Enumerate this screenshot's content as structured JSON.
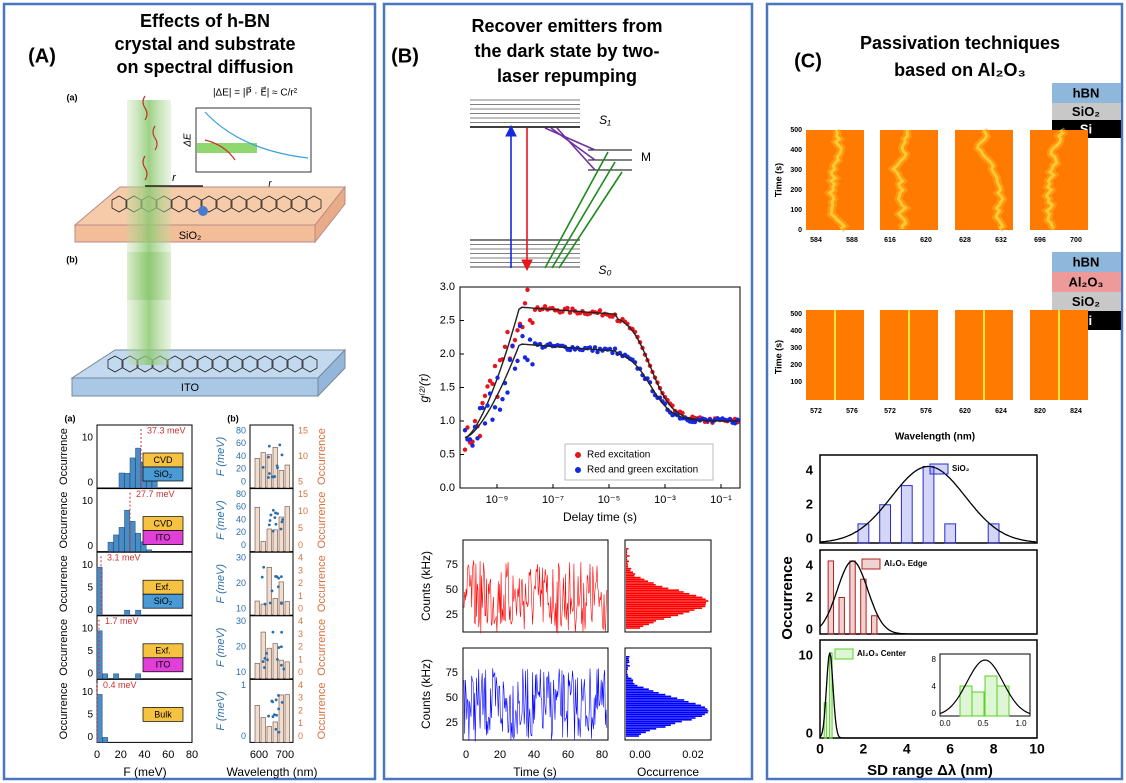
{
  "panel_a": {
    "label": "(A)",
    "title": [
      "Effects of h-BN",
      "crystal and substrate",
      "on spectral diffusion"
    ],
    "schematic": {
      "label_a": "(a)",
      "label_b": "(b)",
      "equation": "|ΔE| = |P⃗ · E⃗| ≈ C/r²",
      "inset_y_label": "ΔE",
      "inset_x_label": "r",
      "distance_label": "r",
      "substrate_a": "SiO₂",
      "substrate_b": "ITO"
    },
    "histograms": {
      "label_a": "(a)",
      "label_b": "(b)",
      "y_label": "Occurrence",
      "x_label": "F (meV)",
      "x_ticks": [
        "0",
        "20",
        "40",
        "60",
        "80"
      ],
      "f_label": "F (meV)",
      "occurrence_label": "Occurrence",
      "right_x_label": "Wavelength (nm)",
      "right_x_ticks": [
        "600",
        "700"
      ],
      "rows": [
        {
          "annotation": "37.3 meV",
          "tags": [
            "CVD",
            "SiO₂"
          ],
          "tag_colors": [
            "#f5c242",
            "#4a9ad6"
          ],
          "y_ticks": [
            "0",
            "10"
          ],
          "f_ticks": [
            "0",
            "20",
            "40",
            "60",
            "80"
          ],
          "occ_ticks": [
            "5",
            "10",
            "15"
          ]
        },
        {
          "annotation": "27.7 meV",
          "tags": [
            "CVD",
            "ITO"
          ],
          "tag_colors": [
            "#f5c242",
            "#e040d8"
          ],
          "y_ticks": [
            "0",
            "10"
          ],
          "f_ticks": [
            "0",
            "20",
            "40",
            "60",
            "80"
          ],
          "occ_ticks": [
            "0",
            "5",
            "10",
            "15"
          ]
        },
        {
          "annotation": "3.1 meV",
          "tags": [
            "Exf.",
            "SiO₂"
          ],
          "tag_colors": [
            "#f5c242",
            "#4a9ad6"
          ],
          "y_ticks": [
            "0",
            "5",
            "10"
          ],
          "f_ticks": [
            "10",
            "20",
            "30"
          ],
          "occ_ticks": [
            "0",
            "1",
            "2",
            "3",
            "4"
          ]
        },
        {
          "annotation": "1.7 meV",
          "tags": [
            "Exf.",
            "ITO"
          ],
          "tag_colors": [
            "#f5c242",
            "#e040d8"
          ],
          "y_ticks": [
            "0",
            "5",
            "10"
          ],
          "f_ticks": [
            "10",
            "20",
            "30"
          ],
          "occ_ticks": [
            "0",
            "1",
            "2",
            "3",
            "4"
          ]
        },
        {
          "annotation": "0.4 meV",
          "tags": [
            "Bulk"
          ],
          "tag_colors": [
            "#f5c242"
          ],
          "y_ticks": [
            "0",
            "5",
            "10"
          ],
          "f_ticks": [
            "0",
            "1"
          ],
          "occ_ticks": [
            "0",
            "1",
            "2",
            "3",
            "4"
          ]
        }
      ]
    }
  },
  "panel_b": {
    "label": "(B)",
    "title": [
      "Recover emitters from",
      "the dark state by two-",
      "laser repumping"
    ],
    "levels": {
      "s1": "S₁",
      "m": "M",
      "s0": "S₀"
    },
    "g2": {
      "y_label": "g⁽²⁾(τ)",
      "x_label": "Delay time (s)",
      "y_ticks": [
        "0.0",
        "0.5",
        "1.0",
        "1.5",
        "2.0",
        "2.5",
        "3.0"
      ],
      "x_ticks": [
        "10⁻⁹",
        "10⁻⁷",
        "10⁻⁵",
        "10⁻³",
        "10⁻¹"
      ],
      "legend": [
        {
          "name": "Red excitation",
          "color": "#e8141c"
        },
        {
          "name": "Red and green excitation",
          "color": "#1428e0"
        }
      ]
    },
    "traces": {
      "y_label": "Counts (kHz)",
      "y_ticks": [
        "25",
        "50",
        "75"
      ],
      "x_label": "Time (s)",
      "x_ticks": [
        "0",
        "20",
        "40",
        "60",
        "80"
      ],
      "hist_x_label": "Occurrence",
      "hist_x_ticks": [
        "0.00",
        "0.02"
      ]
    }
  },
  "panel_c": {
    "label": "(C)",
    "title": [
      "Passivation techniques",
      "based on Al₂O₃"
    ],
    "stack_1": [
      "hBN",
      "SiO₂",
      "Si"
    ],
    "stack_2": [
      "hBN",
      "Al₂O₃",
      "SiO₂",
      "Si"
    ],
    "maps": {
      "y_label": "Time (s)",
      "y_ticks_1": [
        "0",
        "100",
        "200",
        "300",
        "400",
        "500"
      ],
      "y_ticks_2": [
        "100",
        "200",
        "300",
        "400",
        "500"
      ],
      "x_ticks_1": [
        "584",
        "588",
        "616",
        "620",
        "628",
        "632",
        "696",
        "700"
      ],
      "x_ticks_2": [
        "572",
        "576",
        "572",
        "576",
        "620",
        "624",
        "820",
        "824"
      ],
      "x_label": "Wavelength (nm)"
    },
    "histograms": {
      "y_label": "Occurrence",
      "x_label": "SD range Δλ (nm)",
      "x_ticks": [
        "0",
        "2",
        "4",
        "6",
        "8",
        "10"
      ],
      "legends": [
        "SiO₂",
        "Al₂O₃ Edge",
        "Al₂O₃ Center"
      ],
      "y_ticks": [
        [
          "0",
          "2",
          "4"
        ],
        [
          "0",
          "2",
          "4"
        ],
        [
          "0",
          "10"
        ]
      ],
      "inset_x_ticks": [
        "0.0",
        "0.5",
        "1.0"
      ],
      "inset_y_ticks": [
        "0",
        "4",
        "8"
      ]
    }
  }
}
